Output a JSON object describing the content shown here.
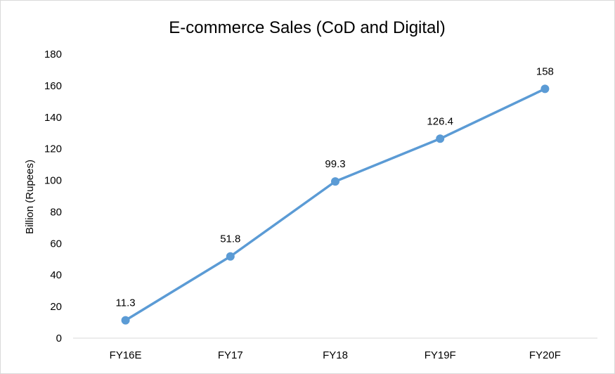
{
  "chart_data": {
    "type": "line",
    "title": "E-commerce Sales (CoD and Digital)",
    "xlabel": "",
    "ylabel": "Billion (Rupees)",
    "categories": [
      "FY16E",
      "FY17",
      "FY18",
      "FY19F",
      "FY20F"
    ],
    "series": [
      {
        "values": [
          11.3,
          51.8,
          99.3,
          126.4,
          158
        ],
        "data_labels": [
          "11.3",
          "51.8",
          "99.3",
          "126.4",
          "158"
        ],
        "color": "#5b9bd5"
      }
    ],
    "ylim": [
      0,
      180
    ],
    "yticks": [
      0,
      20,
      40,
      60,
      80,
      100,
      120,
      140,
      160,
      180
    ],
    "ytick_labels": [
      "0",
      "20",
      "40",
      "60",
      "80",
      "100",
      "120",
      "140",
      "160",
      "180"
    ],
    "grid": false,
    "legend": "none"
  }
}
